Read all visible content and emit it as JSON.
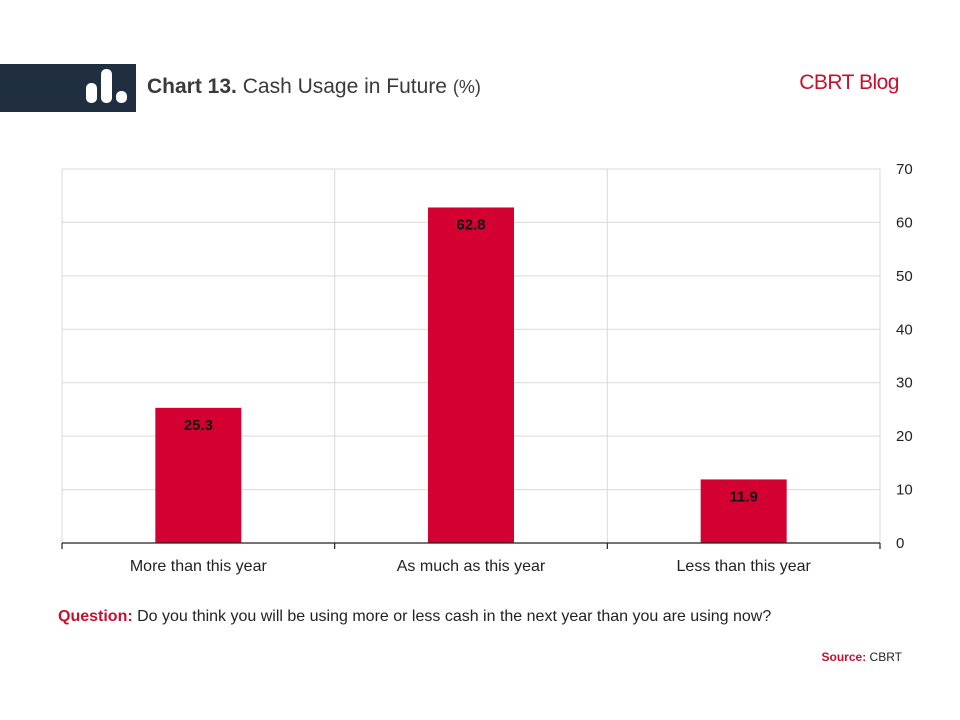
{
  "header": {
    "title_number": "Chart 13.",
    "title_text": "Cash Usage in Future",
    "title_unit": "(%)",
    "brand": "CBRT Blog",
    "logo_icon": "bar-chart-icon"
  },
  "chart_data": {
    "type": "bar",
    "categories": [
      "More than this year",
      "As much as this year",
      "Less than this year"
    ],
    "values": [
      25.3,
      62.8,
      11.9
    ],
    "data_labels": [
      "25.3",
      "62.8",
      "11.9"
    ],
    "ylim": [
      0,
      70
    ],
    "yticks": [
      "0",
      "10",
      "20",
      "30",
      "40",
      "50",
      "60",
      "70"
    ],
    "y_axis_side": "right",
    "grid": true,
    "bar_color": "#d50032"
  },
  "footer": {
    "question_label": "Question:",
    "question_text": " Do you think you will be using more or less cash in the next year than you are using now?",
    "source_label": "Source:",
    "source_text": " CBRT"
  }
}
